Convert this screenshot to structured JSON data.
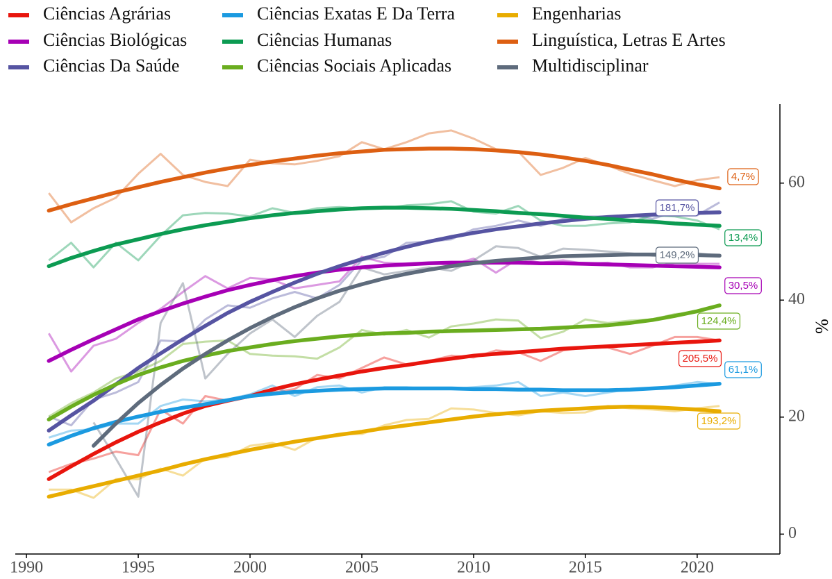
{
  "chart_data": {
    "type": "line",
    "y_label": "%",
    "x": [
      1991,
      1992,
      1993,
      1994,
      1995,
      1996,
      1997,
      1998,
      1999,
      2000,
      2001,
      2002,
      2003,
      2004,
      2005,
      2006,
      2007,
      2008,
      2009,
      2010,
      2011,
      2012,
      2013,
      2014,
      2015,
      2016,
      2017,
      2018,
      2019,
      2020,
      2021
    ],
    "xlim": [
      1989.5,
      2023.7
    ],
    "xticks": [
      1990,
      1995,
      2000,
      2005,
      2010,
      2015,
      2020
    ],
    "ylim": [
      -3.4,
      73.5
    ],
    "yticks": [
      0,
      20,
      40,
      60
    ],
    "series": [
      {
        "name": "Ciências Agrárias",
        "color": "#e8150d",
        "end_label": "205,5%",
        "values": [
          10.6,
          12,
          12.9,
          14.1,
          13.5,
          21.3,
          18.9,
          23.6,
          22.8,
          23.6,
          24.2,
          24.8,
          27.2,
          26.6,
          28.4,
          30.2,
          29,
          29.6,
          30.5,
          30.2,
          31.4,
          31.1,
          29.6,
          31.4,
          31.9,
          31.9,
          30.8,
          32.2,
          33.7,
          33.7,
          33.1
        ],
        "trend": [
          9.4,
          11.6,
          13.7,
          15.7,
          17.5,
          19.1,
          20.6,
          21.9,
          22.8,
          23.6,
          24.7,
          25.6,
          26.4,
          27.1,
          27.8,
          28.4,
          28.9,
          29.5,
          30,
          30.5,
          30.8,
          31.1,
          31.4,
          31.7,
          31.9,
          32.1,
          32.3,
          32.5,
          32.7,
          32.9,
          33.1
        ]
      },
      {
        "name": "Ciências Biológicas",
        "color": "#a600b5",
        "end_label": "30,5%",
        "values": [
          34.3,
          27.8,
          32.2,
          33.4,
          36.1,
          38.5,
          41.4,
          44.1,
          42,
          43.8,
          43.5,
          42,
          42.6,
          43.2,
          47.4,
          46.4,
          46.2,
          46.4,
          46,
          47.1,
          44.7,
          47.1,
          46.4,
          46.8,
          46.2,
          46.4,
          45.6,
          45.6,
          46.4,
          46.2,
          46.2
        ],
        "trend": [
          29.6,
          31.5,
          33.3,
          35,
          36.7,
          38.1,
          39.4,
          40.6,
          41.7,
          42.6,
          43.4,
          44.1,
          44.7,
          45.2,
          45.6,
          45.9,
          46.1,
          46.3,
          46.4,
          46.4,
          46.4,
          46.4,
          46.3,
          46.3,
          46.2,
          46.1,
          46,
          45.9,
          45.8,
          45.7,
          45.6
        ]
      },
      {
        "name": "Ciências Da Saúde",
        "color": "#5654a2",
        "end_label": "181,7%",
        "values": [
          20.1,
          18.6,
          23,
          24.2,
          26,
          33.1,
          32.9,
          36.7,
          39.1,
          38.7,
          40.3,
          41.4,
          40.3,
          42.6,
          46.8,
          47.4,
          49.8,
          50,
          50.4,
          52.1,
          52.7,
          53.6,
          52.7,
          53.9,
          54.3,
          54.3,
          54.5,
          53.9,
          55.1,
          54.5,
          56.7
        ],
        "trend": [
          17.7,
          20.3,
          22.8,
          25.6,
          28.4,
          30.9,
          33.3,
          35.6,
          37.8,
          39.7,
          41.4,
          43,
          44.5,
          45.8,
          47,
          48.1,
          49.1,
          50,
          50.8,
          51.5,
          52.1,
          52.6,
          53.1,
          53.5,
          53.9,
          54.2,
          54.4,
          54.6,
          54.8,
          54.9,
          55
        ]
      },
      {
        "name": "Ciências Exatas E Da Terra",
        "color": "#1b9ae0",
        "end_label": "61,1%",
        "values": [
          16.5,
          17.7,
          17.9,
          18.9,
          18.9,
          21.9,
          23,
          22.7,
          23,
          23.9,
          25.4,
          23.6,
          25.1,
          25.4,
          24.2,
          25.1,
          25.1,
          24.8,
          24.8,
          25.1,
          25.4,
          26,
          23.6,
          24.2,
          23.6,
          24.2,
          24.8,
          24.8,
          25.4,
          26,
          25.7
        ],
        "trend": [
          15.3,
          16.8,
          18.1,
          19.2,
          20.1,
          20.9,
          21.6,
          22.2,
          22.9,
          23.6,
          24,
          24.3,
          24.5,
          24.7,
          24.8,
          24.9,
          24.9,
          24.9,
          24.9,
          24.8,
          24.8,
          24.7,
          24.7,
          24.6,
          24.6,
          24.6,
          24.7,
          24.9,
          25.1,
          25.4,
          25.7
        ]
      },
      {
        "name": "Ciências Humanas",
        "color": "#0c9b52",
        "end_label": "13,4%",
        "values": [
          46.8,
          49.8,
          45.6,
          49.8,
          46.8,
          51,
          54.5,
          54.9,
          54.8,
          54.3,
          55.7,
          54.9,
          55.7,
          55.9,
          55.7,
          55.7,
          56.2,
          56.4,
          56.9,
          55.1,
          54.8,
          56.1,
          53.6,
          52.7,
          52.7,
          53.1,
          53.3,
          54.5,
          54.3,
          53.6,
          52.1
        ],
        "trend": [
          45.8,
          47.2,
          48.4,
          49.5,
          50.4,
          51.3,
          52.1,
          52.8,
          53.4,
          54,
          54.5,
          54.9,
          55.2,
          55.5,
          55.7,
          55.8,
          55.8,
          55.7,
          55.6,
          55.4,
          55.2,
          54.9,
          54.7,
          54.4,
          54.1,
          53.9,
          53.6,
          53.4,
          53.1,
          52.9,
          52.7
        ]
      },
      {
        "name": "Ciências Sociais Aplicadas",
        "color": "#6aad1f",
        "end_label": "124,4%",
        "values": [
          20.1,
          22.4,
          24.2,
          26.6,
          27.8,
          29.6,
          32.5,
          32.9,
          33.1,
          30.8,
          30.5,
          30.4,
          30,
          31.9,
          34.9,
          34.1,
          34.9,
          33.6,
          35.5,
          36,
          36.7,
          36.5,
          33.5,
          34.6,
          36.7,
          36.1,
          36.5,
          36.7,
          37.6,
          37.9,
          39.1
        ],
        "trend": [
          19.6,
          21.8,
          23.8,
          25.6,
          27.2,
          28.5,
          29.6,
          30.5,
          31.3,
          31.9,
          32.5,
          33,
          33.4,
          33.8,
          34.1,
          34.3,
          34.4,
          34.6,
          34.7,
          34.8,
          34.9,
          35,
          35.1,
          35.3,
          35.5,
          35.7,
          36.1,
          36.6,
          37.3,
          38.1,
          39.1
        ]
      },
      {
        "name": "Engenharias",
        "color": "#e8ac00",
        "end_label": "193,2%",
        "values": [
          7.6,
          7.6,
          6.2,
          9.4,
          9.4,
          11.2,
          10,
          12.9,
          13.2,
          15.1,
          15.6,
          14.4,
          16.5,
          17.1,
          17.1,
          18.6,
          19.5,
          19.7,
          21.5,
          21.3,
          20.7,
          20.3,
          21,
          20.7,
          20.8,
          21.9,
          21.5,
          21.3,
          21,
          21.5,
          21.9
        ],
        "trend": [
          6.4,
          7.3,
          8.2,
          9.1,
          10,
          10.9,
          11.9,
          12.8,
          13.6,
          14.4,
          15.1,
          15.8,
          16.4,
          17,
          17.5,
          18.1,
          18.6,
          19.1,
          19.6,
          20.1,
          20.5,
          20.8,
          21.1,
          21.3,
          21.5,
          21.7,
          21.8,
          21.7,
          21.5,
          21.3,
          21
        ]
      },
      {
        "name": "Linguística, Letras E Artes",
        "color": "#dd5f12",
        "end_label": "4,7%",
        "values": [
          58.3,
          53.3,
          55.7,
          57.5,
          61.6,
          65,
          61.4,
          60.2,
          59.5,
          64,
          63.4,
          63.2,
          63.8,
          64.6,
          67,
          65.8,
          67,
          68.5,
          69,
          67.6,
          65.8,
          65.4,
          61.4,
          62.6,
          64.3,
          63,
          61.6,
          60.5,
          59.5,
          60.5,
          61
        ],
        "trend": [
          55.3,
          56.4,
          57.4,
          58.4,
          59.3,
          60.2,
          61,
          61.8,
          62.5,
          63.1,
          63.7,
          64.2,
          64.7,
          65.1,
          65.4,
          65.7,
          65.8,
          65.9,
          65.9,
          65.8,
          65.6,
          65.3,
          64.9,
          64.4,
          63.8,
          63.1,
          62.3,
          61.5,
          60.6,
          59.8,
          59.1
        ]
      },
      {
        "name": "Multidisciplinar",
        "color": "#5e6b7c",
        "end_label": "149,2%",
        "values": [
          null,
          null,
          19.1,
          12.9,
          6.4,
          36.1,
          42.9,
          26.6,
          30.8,
          34.3,
          36.7,
          33.7,
          37.3,
          39.7,
          45.6,
          44.4,
          45,
          45.6,
          45,
          46.8,
          49.2,
          48.9,
          47.4,
          48.8,
          48.6,
          48.3,
          48,
          47.6,
          47.4,
          48,
          47.6
        ],
        "trend": [
          null,
          null,
          15.1,
          18.9,
          22.4,
          25.5,
          28.3,
          30.8,
          33.1,
          35.2,
          37.1,
          38.8,
          40.3,
          41.6,
          42.7,
          43.7,
          44.5,
          45.2,
          45.8,
          46.3,
          46.7,
          47,
          47.3,
          47.5,
          47.6,
          47.7,
          47.8,
          47.8,
          47.8,
          47.7,
          47.6
        ]
      }
    ]
  }
}
